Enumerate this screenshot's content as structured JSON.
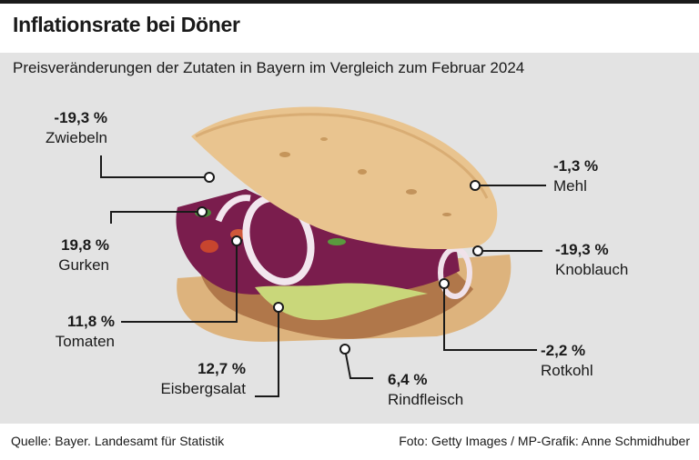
{
  "header": {
    "title": "Inflationsrate bei Döner"
  },
  "subtitle": "Preisveränderungen der Zutaten in Bayern im Vergleich zum Februar 2024",
  "labels": [
    {
      "id": "zwiebeln",
      "value": "-19,3 %",
      "name": "Zwiebeln"
    },
    {
      "id": "gurken",
      "value": "19,8 %",
      "name": "Gurken"
    },
    {
      "id": "tomaten",
      "value": "11,8 %",
      "name": "Tomaten"
    },
    {
      "id": "eisbergsalat",
      "value": "12,7 %",
      "name": "Eisbergsalat"
    },
    {
      "id": "rindfleisch",
      "value": "6,4 %",
      "name": "Rindfleisch"
    },
    {
      "id": "rotkohl",
      "value": "-2,2 %",
      "name": "Rotkohl"
    },
    {
      "id": "knoblauch",
      "value": "-19,3 %",
      "name": "Knoblauch"
    },
    {
      "id": "mehl",
      "value": "-1,3 %",
      "name": "Mehl"
    }
  ],
  "footer": {
    "source": "Quelle: Bayer. Landesamt für Statistik",
    "credit": "Foto: Getty Images / MP-Grafik: Anne Schmidhuber"
  },
  "colors": {
    "panel_background": "#e3e3e3",
    "bread": "#e9c48f",
    "red_cabbage": "#7a1d4d",
    "lettuce": "#c9d77a",
    "meat": "#b0774a",
    "onion": "#f2e6ee"
  }
}
